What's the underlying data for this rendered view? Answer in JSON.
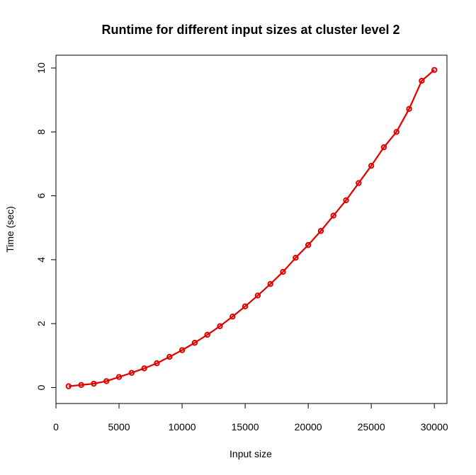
{
  "chart_data": {
    "type": "line",
    "title": "Runtime for different input sizes at cluster level 2",
    "xlabel": "Input size",
    "ylabel": "Time (sec)",
    "xlim": [
      0,
      31000
    ],
    "ylim": [
      -0.5,
      10.4
    ],
    "xticks": [
      0,
      5000,
      10000,
      15000,
      20000,
      25000,
      30000
    ],
    "yticks": [
      0,
      2,
      4,
      6,
      8,
      10
    ],
    "grid": false,
    "legend": "none",
    "series": [
      {
        "color": "#e00000",
        "marker": "circle",
        "x": [
          1000,
          2000,
          3000,
          4000,
          5000,
          6000,
          7000,
          8000,
          9000,
          10000,
          11000,
          12000,
          13000,
          14000,
          15000,
          16000,
          17000,
          18000,
          19000,
          20000,
          21000,
          22000,
          23000,
          24000,
          25000,
          26000,
          27000,
          28000,
          29000,
          30000
        ],
        "y": [
          0.04,
          0.08,
          0.12,
          0.2,
          0.33,
          0.46,
          0.6,
          0.76,
          0.96,
          1.17,
          1.4,
          1.65,
          1.92,
          2.22,
          2.54,
          2.88,
          3.24,
          3.62,
          4.06,
          4.46,
          4.9,
          5.38,
          5.86,
          6.4,
          6.94,
          7.52,
          8.0,
          8.72,
          9.6,
          9.94
        ]
      }
    ]
  }
}
